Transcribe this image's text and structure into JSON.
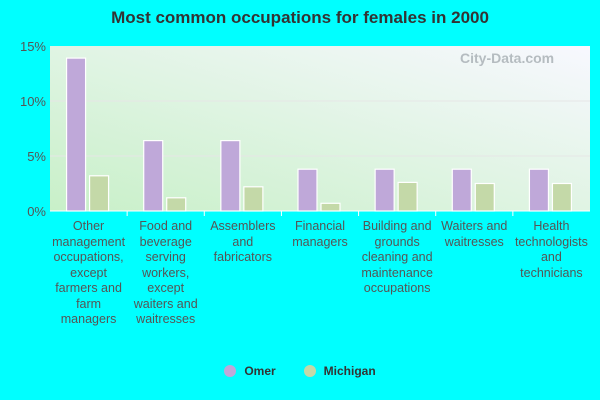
{
  "chart_data": {
    "type": "bar",
    "title": "Most common occupations for females in 2000",
    "categories": [
      "Other management occupations, except farmers and farm managers",
      "Food and beverage serving workers, except waiters and waitresses",
      "Assemblers and fabricators",
      "Financial managers",
      "Building and grounds cleaning and maintenance occupations",
      "Waiters and waitresses",
      "Health technologists and technicians"
    ],
    "series": [
      {
        "name": "Omer",
        "color": "#bfa8d9",
        "values": [
          13.9,
          6.4,
          6.4,
          3.8,
          3.8,
          3.8,
          3.8
        ]
      },
      {
        "name": "Michigan",
        "color": "#c4d9a8",
        "values": [
          3.2,
          1.2,
          2.2,
          0.7,
          2.6,
          2.5,
          2.5
        ]
      }
    ],
    "yticks": [
      "0%",
      "5%",
      "10%",
      "15%"
    ],
    "ylim": [
      0,
      15
    ],
    "grid": true,
    "legend": "bottom",
    "watermark": "City-Data.com"
  }
}
